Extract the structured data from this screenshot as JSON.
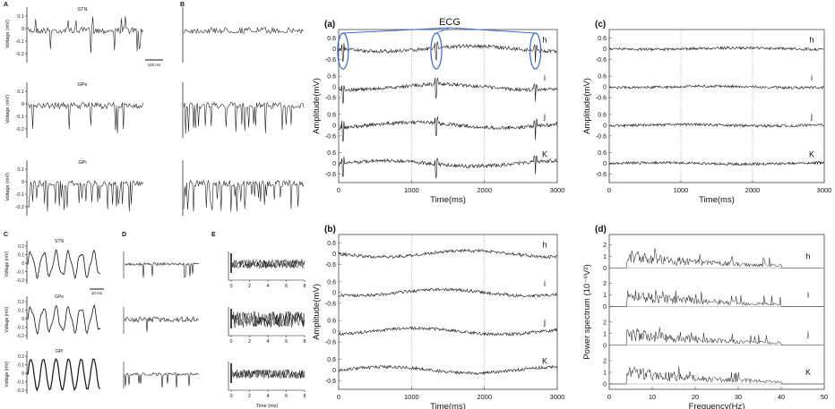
{
  "chart_data": [
    {
      "type": "line",
      "panel_letter": "A",
      "ylabel": "Voltage (mV)",
      "yticks": [
        "0.1",
        "0",
        "-0.1",
        "-0.2"
      ],
      "scale_bar": "100 ms",
      "series": [
        {
          "name": "STN",
          "style": "spiky"
        },
        {
          "name": "GPe",
          "style": "spiky-down"
        },
        {
          "name": "GPi",
          "style": "dense-down"
        }
      ]
    },
    {
      "type": "line",
      "panel_letter": "B",
      "series": [
        {
          "name": "",
          "style": "quiet"
        },
        {
          "name": "",
          "style": "spiky-down"
        },
        {
          "name": "",
          "style": "dense-down"
        }
      ]
    },
    {
      "type": "line",
      "panel_letter": "C",
      "ylabel": "Voltage (mV)",
      "yticks": [
        "0.2",
        "0.1",
        "0",
        "-0.1",
        "-0.2"
      ],
      "scale_bar": "10 ms",
      "series": [
        {
          "name": "STN"
        },
        {
          "name": "GPe"
        },
        {
          "name": "GPi"
        }
      ]
    },
    {
      "type": "line",
      "panel_letter": "D",
      "series": [
        {
          "name": ""
        },
        {
          "name": ""
        },
        {
          "name": ""
        }
      ]
    },
    {
      "type": "line",
      "panel_letter": "E",
      "xlabel": "Time (ms)",
      "xticks": [
        "0",
        "2",
        "4",
        "6",
        "8"
      ],
      "series": [
        {
          "name": ""
        },
        {
          "name": ""
        },
        {
          "name": ""
        }
      ]
    },
    {
      "type": "line",
      "panel_letter": "(a)",
      "xlabel": "Time(ms)",
      "ylabel": "Amplitude(mV)",
      "xlim": [
        0,
        3000
      ],
      "xticks": [
        "0",
        "1000",
        "2000",
        "3000"
      ],
      "yticks": [
        "0.6",
        "0",
        "-0.6"
      ],
      "annotation": "ECG",
      "ecg_times_ms": [
        60,
        1340,
        2700
      ],
      "series": [
        {
          "name": "h"
        },
        {
          "name": "i"
        },
        {
          "name": "j"
        },
        {
          "name": "K"
        }
      ]
    },
    {
      "type": "line",
      "panel_letter": "(b)",
      "xlabel": "Time(ms)",
      "ylabel": "Amplitude(mV)",
      "xlim": [
        0,
        3000
      ],
      "xticks": [
        "0",
        "1000",
        "2000",
        "3000"
      ],
      "yticks": [
        "0.6",
        "0",
        "-0.6"
      ],
      "series": [
        {
          "name": "h"
        },
        {
          "name": "i"
        },
        {
          "name": "j"
        },
        {
          "name": "K"
        }
      ]
    },
    {
      "type": "line",
      "panel_letter": "(c)",
      "xlabel": "Time(ms)",
      "ylabel": "Amplitude(mV)",
      "xlim": [
        0,
        3000
      ],
      "xticks": [
        "0",
        "1000",
        "2000",
        "3000"
      ],
      "yticks": [
        "0.6",
        "0",
        "-0.6"
      ],
      "series": [
        {
          "name": "h"
        },
        {
          "name": "i"
        },
        {
          "name": "j"
        },
        {
          "name": "K"
        }
      ]
    },
    {
      "type": "line",
      "panel_letter": "(d)",
      "xlabel": "Frequency(Hz)",
      "ylabel": "Power spectrum (10⁻⁶V²)",
      "xlim": [
        0,
        50
      ],
      "xticks": [
        "0",
        "10",
        "20",
        "30",
        "40",
        "50"
      ],
      "yticks": [
        "2",
        "1",
        "0"
      ],
      "band_hz": [
        4,
        40
      ],
      "series": [
        {
          "name": "h"
        },
        {
          "name": "i"
        },
        {
          "name": "j"
        },
        {
          "name": "K"
        }
      ]
    }
  ],
  "colors": {
    "trace": "#111111",
    "ecg": "#3a66d4",
    "grid": "#9a9a9a"
  }
}
